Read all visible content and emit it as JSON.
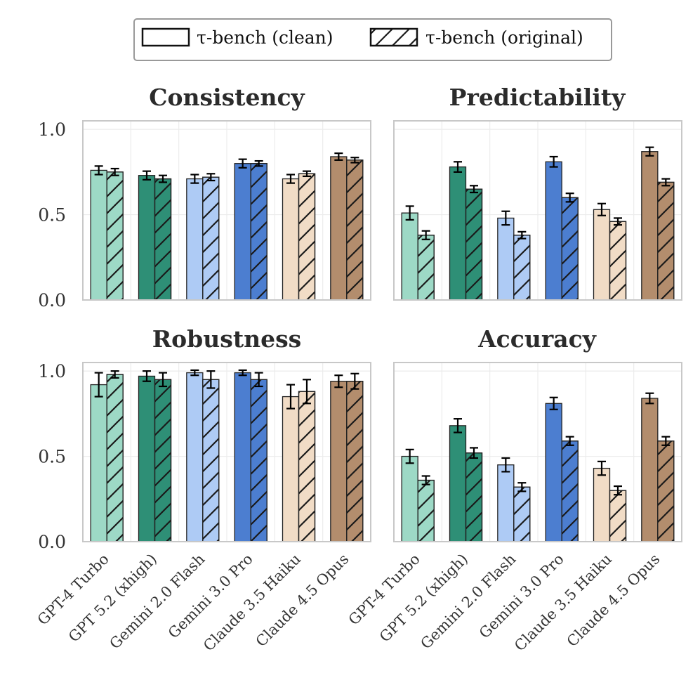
{
  "chart_data": {
    "type": "bar",
    "legend": {
      "placement": "top-center",
      "entries": [
        {
          "label": "τ-bench (clean)",
          "pattern": "solid"
        },
        {
          "label": "τ-bench (original)",
          "pattern": "hatched"
        }
      ]
    },
    "categories": [
      "GPT-4 Turbo",
      "GPT 5.2 (xhigh)",
      "Gemini 2.0 Flash",
      "Gemini 3.0 Pro",
      "Claude 3.5 Haiku",
      "Claude 4.5 Opus"
    ],
    "category_colors": [
      "#9dd9c6",
      "#2e8f76",
      "#aecbf5",
      "#4c7ed0",
      "#f1dcc6",
      "#b38d6d"
    ],
    "ylim": [
      0,
      1.05
    ],
    "yticks": [
      0.0,
      0.5,
      1.0
    ],
    "ytick_labels": [
      "0.0",
      "0.5",
      "1.0"
    ],
    "grid": true,
    "panels": [
      {
        "title": "Consistency",
        "series": [
          {
            "name": "τ-bench (clean)",
            "values": [
              0.76,
              0.73,
              0.71,
              0.8,
              0.71,
              0.84
            ],
            "errors": [
              0.025,
              0.025,
              0.025,
              0.025,
              0.025,
              0.02
            ]
          },
          {
            "name": "τ-bench (original)",
            "values": [
              0.75,
              0.71,
              0.72,
              0.8,
              0.74,
              0.82
            ],
            "errors": [
              0.02,
              0.02,
              0.02,
              0.015,
              0.015,
              0.015
            ]
          }
        ]
      },
      {
        "title": "Predictability",
        "series": [
          {
            "name": "τ-bench (clean)",
            "values": [
              0.51,
              0.78,
              0.48,
              0.81,
              0.53,
              0.87
            ],
            "errors": [
              0.04,
              0.03,
              0.04,
              0.03,
              0.035,
              0.025
            ]
          },
          {
            "name": "τ-bench (original)",
            "values": [
              0.38,
              0.65,
              0.38,
              0.6,
              0.46,
              0.69
            ],
            "errors": [
              0.025,
              0.02,
              0.02,
              0.025,
              0.02,
              0.02
            ]
          }
        ]
      },
      {
        "title": "Robustness",
        "series": [
          {
            "name": "τ-bench (clean)",
            "values": [
              0.92,
              0.97,
              0.99,
              0.99,
              0.85,
              0.94
            ],
            "errors": [
              0.07,
              0.03,
              0.015,
              0.015,
              0.07,
              0.035
            ]
          },
          {
            "name": "τ-bench (original)",
            "values": [
              0.98,
              0.95,
              0.95,
              0.95,
              0.88,
              0.94
            ],
            "errors": [
              0.02,
              0.04,
              0.05,
              0.04,
              0.07,
              0.045
            ]
          }
        ]
      },
      {
        "title": "Accuracy",
        "series": [
          {
            "name": "τ-bench (clean)",
            "values": [
              0.5,
              0.68,
              0.45,
              0.81,
              0.43,
              0.84
            ],
            "errors": [
              0.04,
              0.04,
              0.04,
              0.035,
              0.04,
              0.03
            ]
          },
          {
            "name": "τ-bench (original)",
            "values": [
              0.36,
              0.52,
              0.32,
              0.59,
              0.3,
              0.59
            ],
            "errors": [
              0.025,
              0.03,
              0.025,
              0.025,
              0.025,
              0.025
            ]
          }
        ]
      }
    ]
  }
}
